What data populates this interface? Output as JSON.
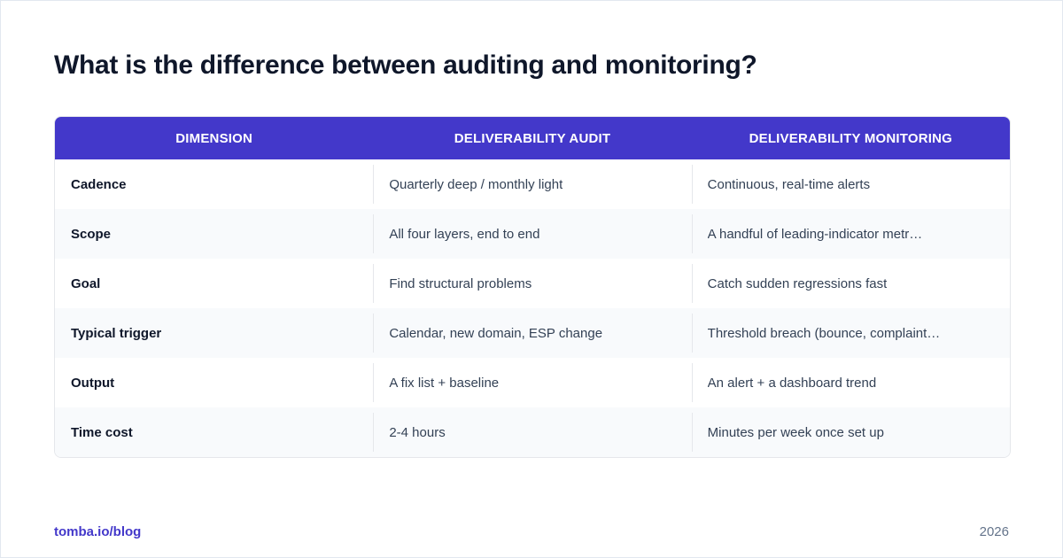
{
  "title": "What is the difference between auditing and monitoring?",
  "table": {
    "headers": [
      "DIMENSION",
      "DELIVERABILITY AUDIT",
      "DELIVERABILITY MONITORING"
    ],
    "rows": [
      [
        "Cadence",
        "Quarterly deep / monthly light",
        "Continuous, real-time alerts"
      ],
      [
        "Scope",
        "All four layers, end to end",
        "A handful of leading-indicator metr…"
      ],
      [
        "Goal",
        "Find structural problems",
        "Catch sudden regressions fast"
      ],
      [
        "Typical trigger",
        "Calendar, new domain, ESP change",
        "Threshold breach (bounce, complaint…"
      ],
      [
        "Output",
        "A fix list + baseline",
        "An alert + a dashboard trend"
      ],
      [
        "Time cost",
        "2-4 hours",
        "Minutes per week once set up"
      ]
    ]
  },
  "footer": {
    "source": "tomba.io/blog",
    "year": "2026"
  },
  "colors": {
    "header_bg": "#4338ca",
    "accent": "#4338ca",
    "alt_row": "#f8fafc"
  }
}
